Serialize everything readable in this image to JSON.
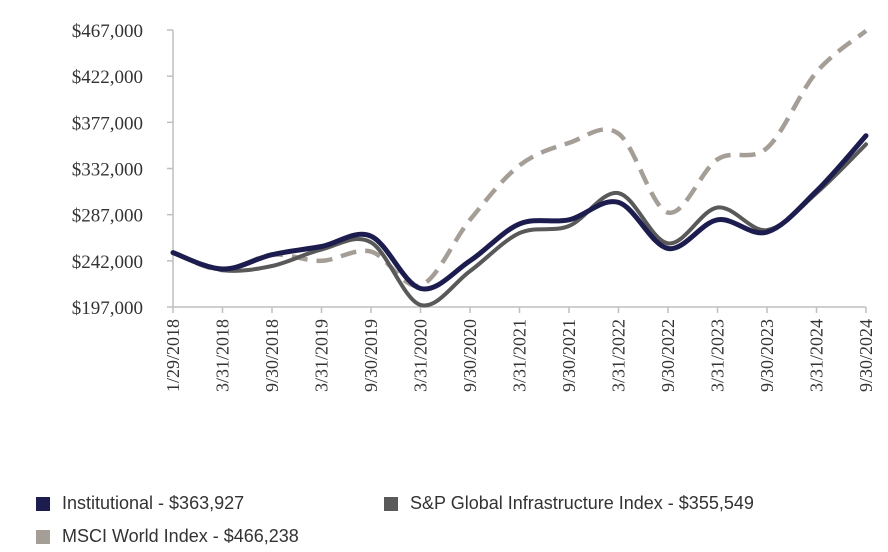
{
  "chart_data": {
    "type": "line",
    "title": "",
    "xlabel": "",
    "ylabel": "",
    "x": [
      "1/29/2018",
      "3/31/2018",
      "9/30/2018",
      "3/31/2019",
      "9/30/2019",
      "3/31/2020",
      "9/30/2020",
      "3/31/2021",
      "9/30/2021",
      "3/31/2022",
      "9/30/2022",
      "3/31/2023",
      "9/30/2023",
      "3/31/2024",
      "9/30/2024"
    ],
    "ylim": [
      197000,
      467000
    ],
    "yticks": [
      "$197,000",
      "$242,000",
      "$287,000",
      "$332,000",
      "$377,000",
      "$422,000",
      "$467,000"
    ],
    "ytick_values": [
      197000,
      242000,
      287000,
      332000,
      377000,
      422000,
      467000
    ],
    "grid": false,
    "legend_position": "bottom",
    "series": [
      {
        "name": "Institutional - $363,927",
        "color": "#1c1c4e",
        "style": "solid",
        "values": [
          250000,
          234000,
          248000,
          256000,
          266000,
          215000,
          242000,
          278000,
          282000,
          299000,
          254000,
          282000,
          270000,
          310000,
          363927
        ]
      },
      {
        "name": "S&P Global Infrastructure Index - $355,549",
        "color": "#595959",
        "style": "solid",
        "values": [
          250000,
          233000,
          237000,
          253000,
          260000,
          199000,
          232000,
          269000,
          276000,
          308000,
          259000,
          294000,
          272000,
          308000,
          355549
        ]
      },
      {
        "name": "MSCI World Index - $466,238",
        "color": "#a59e97",
        "style": "dashed",
        "values": [
          250000,
          233000,
          248000,
          242000,
          251000,
          218000,
          282000,
          335000,
          357000,
          366000,
          289000,
          341000,
          352000,
          426000,
          466238
        ]
      }
    ]
  }
}
